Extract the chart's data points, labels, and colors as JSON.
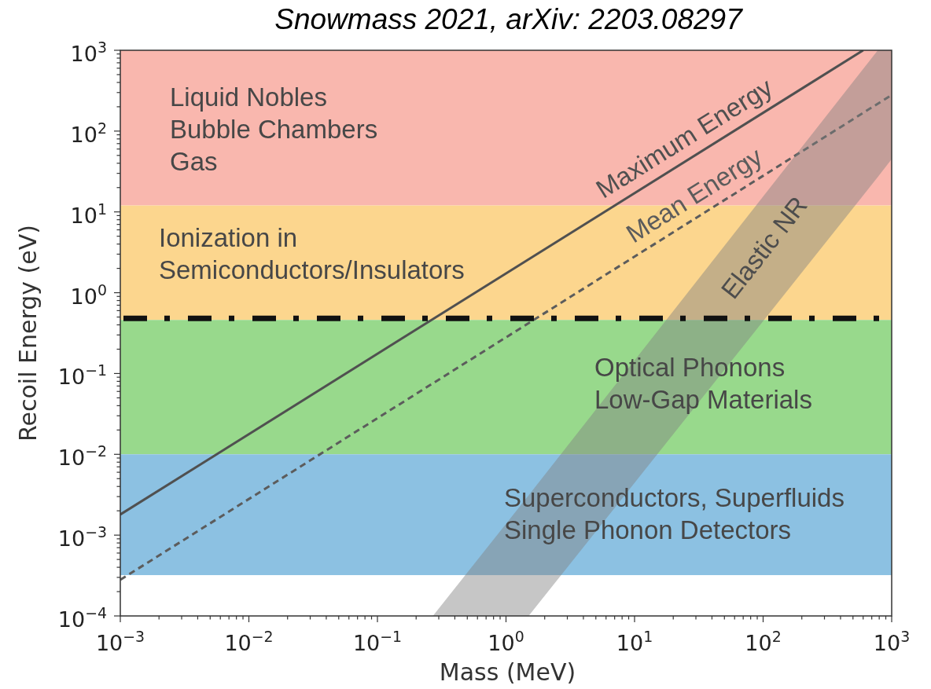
{
  "chart_data": {
    "type": "line",
    "title": "Snowmass 2021, arXiv: 2203.08297",
    "xlabel": "Mass (MeV)",
    "ylabel": "Recoil Energy (eV)",
    "log": "xy",
    "xlim": [
      0.001,
      1000
    ],
    "ylim": [
      0.0001,
      1000
    ],
    "xticks": [
      {
        "value": 0.001,
        "label": "10$^{−3}$"
      },
      {
        "value": 0.002,
        "label": null
      },
      {
        "value": 0.003,
        "label": null
      },
      {
        "value": 0.004,
        "label": null
      },
      {
        "value": 0.005,
        "label": null
      },
      {
        "value": 0.006,
        "label": null
      },
      {
        "value": 0.007,
        "label": null
      },
      {
        "value": 0.008,
        "label": null
      },
      {
        "value": 0.009,
        "label": null
      },
      {
        "value": 0.01,
        "label": "10$^{−2}$"
      },
      {
        "value": 0.02,
        "label": null
      },
      {
        "value": 0.03,
        "label": null
      },
      {
        "value": 0.04,
        "label": null
      },
      {
        "value": 0.05,
        "label": null
      },
      {
        "value": 0.06,
        "label": null
      },
      {
        "value": 0.07,
        "label": null
      },
      {
        "value": 0.08,
        "label": null
      },
      {
        "value": 0.09,
        "label": null
      },
      {
        "value": 0.1,
        "label": "10$^{−1}$"
      },
      {
        "value": 0.2,
        "label": null
      },
      {
        "value": 0.3,
        "label": null
      },
      {
        "value": 0.4,
        "label": null
      },
      {
        "value": 0.5,
        "label": null
      },
      {
        "value": 0.6,
        "label": null
      },
      {
        "value": 0.7,
        "label": null
      },
      {
        "value": 0.8,
        "label": null
      },
      {
        "value": 0.9,
        "label": null
      },
      {
        "value": 1,
        "label": "10$^{0}$"
      },
      {
        "value": 2,
        "label": null
      },
      {
        "value": 3,
        "label": null
      },
      {
        "value": 4,
        "label": null
      },
      {
        "value": 5,
        "label": null
      },
      {
        "value": 6,
        "label": null
      },
      {
        "value": 7,
        "label": null
      },
      {
        "value": 8,
        "label": null
      },
      {
        "value": 9,
        "label": null
      },
      {
        "value": 10,
        "label": "10$^{1}$"
      },
      {
        "value": 20,
        "label": null
      },
      {
        "value": 30,
        "label": null
      },
      {
        "value": 40,
        "label": null
      },
      {
        "value": 50,
        "label": null
      },
      {
        "value": 60,
        "label": null
      },
      {
        "value": 70,
        "label": null
      },
      {
        "value": 80,
        "label": null
      },
      {
        "value": 90,
        "label": null
      },
      {
        "value": 100,
        "label": "10$^{2}$"
      },
      {
        "value": 200,
        "label": null
      },
      {
        "value": 300,
        "label": null
      },
      {
        "value": 400,
        "label": null
      },
      {
        "value": 500,
        "label": null
      },
      {
        "value": 600,
        "label": null
      },
      {
        "value": 700,
        "label": null
      },
      {
        "value": 800,
        "label": null
      },
      {
        "value": 900,
        "label": null
      },
      {
        "value": 1000,
        "label": "10$^{3}$"
      }
    ],
    "yticks": [
      {
        "value": 0.0001,
        "label": "10$^{−4}$"
      },
      {
        "value": 0.0002,
        "label": null
      },
      {
        "value": 0.0003,
        "label": null
      },
      {
        "value": 0.0004,
        "label": null
      },
      {
        "value": 0.0005,
        "label": null
      },
      {
        "value": 0.0006,
        "label": null
      },
      {
        "value": 0.0007,
        "label": null
      },
      {
        "value": 0.0008,
        "label": null
      },
      {
        "value": 0.0009,
        "label": null
      },
      {
        "value": 0.001,
        "label": "10$^{−3}$"
      },
      {
        "value": 0.002,
        "label": null
      },
      {
        "value": 0.003,
        "label": null
      },
      {
        "value": 0.004,
        "label": null
      },
      {
        "value": 0.005,
        "label": null
      },
      {
        "value": 0.006,
        "label": null
      },
      {
        "value": 0.007,
        "label": null
      },
      {
        "value": 0.008,
        "label": null
      },
      {
        "value": 0.009,
        "label": null
      },
      {
        "value": 0.01,
        "label": "10$^{−2}$"
      },
      {
        "value": 0.02,
        "label": null
      },
      {
        "value": 0.03,
        "label": null
      },
      {
        "value": 0.04,
        "label": null
      },
      {
        "value": 0.05,
        "label": null
      },
      {
        "value": 0.06,
        "label": null
      },
      {
        "value": 0.07,
        "label": null
      },
      {
        "value": 0.08,
        "label": null
      },
      {
        "value": 0.09,
        "label": null
      },
      {
        "value": 0.1,
        "label": "10$^{−1}$"
      },
      {
        "value": 0.2,
        "label": null
      },
      {
        "value": 0.3,
        "label": null
      },
      {
        "value": 0.4,
        "label": null
      },
      {
        "value": 0.5,
        "label": null
      },
      {
        "value": 0.6,
        "label": null
      },
      {
        "value": 0.7,
        "label": null
      },
      {
        "value": 0.8,
        "label": null
      },
      {
        "value": 0.9,
        "label": null
      },
      {
        "value": 1,
        "label": "10$^{0}$"
      },
      {
        "value": 2,
        "label": null
      },
      {
        "value": 3,
        "label": null
      },
      {
        "value": 4,
        "label": null
      },
      {
        "value": 5,
        "label": null
      },
      {
        "value": 6,
        "label": null
      },
      {
        "value": 7,
        "label": null
      },
      {
        "value": 8,
        "label": null
      },
      {
        "value": 9,
        "label": null
      },
      {
        "value": 10,
        "label": "10$^{1}$"
      },
      {
        "value": 20,
        "label": null
      },
      {
        "value": 30,
        "label": null
      },
      {
        "value": 40,
        "label": null
      },
      {
        "value": 50,
        "label": null
      },
      {
        "value": 60,
        "label": null
      },
      {
        "value": 70,
        "label": null
      },
      {
        "value": 80,
        "label": null
      },
      {
        "value": 90,
        "label": null
      },
      {
        "value": 100,
        "label": "10$^{2}$"
      },
      {
        "value": 200,
        "label": null
      },
      {
        "value": 300,
        "label": null
      },
      {
        "value": 400,
        "label": null
      },
      {
        "value": 500,
        "label": null
      },
      {
        "value": 600,
        "label": null
      },
      {
        "value": 700,
        "label": null
      },
      {
        "value": 800,
        "label": null
      },
      {
        "value": 900,
        "label": null
      },
      {
        "value": 1000,
        "label": "10$^{3}$"
      }
    ],
    "series": [
      {
        "name": "Maximum Energy",
        "type": "line",
        "color": "#505050",
        "line_style": "solid",
        "x": [
          0.001,
          600
        ],
        "values": [
          0.0018,
          1000
        ]
      },
      {
        "name": "Mean Energy",
        "type": "line",
        "color": "#5c5c5c",
        "line_style": "dashed",
        "x": [
          0.001,
          1000
        ],
        "values": [
          0.00028,
          280
        ]
      },
      {
        "name": "Elastic NR",
        "type": "area",
        "color": "#808080",
        "x": [
          0.27,
          1.5,
          780,
          1000,
          1000,
          780,
          1.5
        ],
        "values": [
          0.0001,
          0.0031,
          1000,
          1000,
          45,
          27,
          0.0001
        ]
      }
    ],
    "bands": [
      {
        "axis": "y",
        "from": 12,
        "to": 1000,
        "label": "Liquid Nobles\nBubble Chambers\nGas",
        "color": "#f9b7ae"
      },
      {
        "axis": "y",
        "from": 0.46,
        "to": 12,
        "label": "Ionization in\nSemiconductors/Insulators",
        "color": "#fcd68e"
      },
      {
        "axis": "y",
        "from": 0.01,
        "to": 0.46,
        "label": "Optical Phonons\nLow-Gap Materials",
        "color": "#98d98c"
      },
      {
        "axis": "y",
        "from": 0.00032,
        "to": 0.01,
        "label": "Superconductors, Superfluids\nSingle Phonon Detectors",
        "color": "#8cc1e2"
      }
    ],
    "ref_lines": [
      {
        "axis": "y",
        "value": 0.48,
        "color": "#111111",
        "line_style": "dashdot"
      }
    ]
  }
}
